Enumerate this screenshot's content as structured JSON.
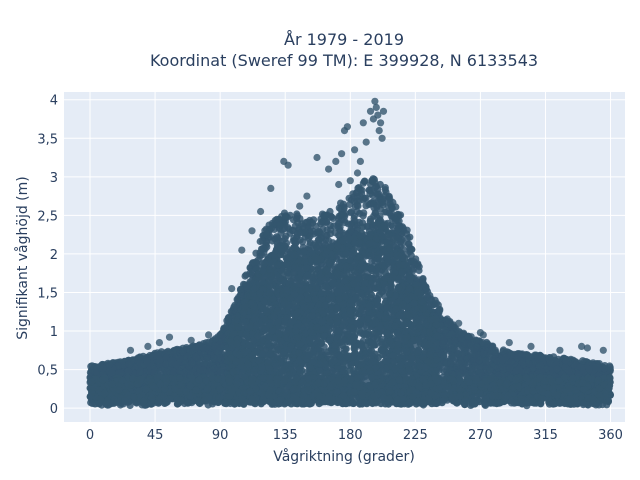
{
  "chart_data": {
    "type": "scatter",
    "title": "År 1979 - 2019",
    "subtitle": "Koordinat (Sweref 99 TM): E 399928, N 6133543",
    "xlabel": "Vågriktning (grader)",
    "ylabel": "Signifikant våghöjd (m)",
    "xlim": [
      -18,
      370
    ],
    "ylim": [
      -0.18,
      4.1
    ],
    "xticks": [
      0,
      45,
      90,
      135,
      180,
      225,
      270,
      315,
      360
    ],
    "xtick_labels": [
      "0",
      "45",
      "90",
      "135",
      "180",
      "225",
      "270",
      "315",
      "360"
    ],
    "yticks": [
      0,
      0.5,
      1,
      1.5,
      2,
      2.5,
      3,
      3.5,
      4
    ],
    "ytick_labels": [
      "0",
      "0,5",
      "1",
      "1,5",
      "2",
      "2,5",
      "3",
      "3,5",
      "4"
    ],
    "grid": true,
    "colors": {
      "marker": "#34566e",
      "plot_bg": "#e5ecf6",
      "grid": "#ffffff"
    },
    "envelope": {
      "x": [
        0,
        20,
        45,
        65,
        80,
        90,
        100,
        110,
        120,
        135,
        150,
        165,
        180,
        190,
        200,
        210,
        220,
        230,
        245,
        260,
        275,
        290,
        315,
        340,
        360
      ],
      "y": [
        0.55,
        0.6,
        0.72,
        0.78,
        0.85,
        0.95,
        1.35,
        1.85,
        2.3,
        2.6,
        2.45,
        2.55,
        2.75,
        2.95,
        3.0,
        2.7,
        2.3,
        1.7,
        1.2,
        0.95,
        0.85,
        0.72,
        0.68,
        0.62,
        0.55
      ]
    },
    "outliers": {
      "x": [
        134,
        137,
        157,
        165,
        170,
        174,
        176,
        178,
        183,
        187,
        189,
        191,
        194,
        196,
        197,
        198,
        199,
        200,
        201,
        202,
        203,
        185,
        180,
        172,
        150,
        145,
        125,
        118,
        112,
        105,
        98,
        82,
        70,
        55,
        48,
        28,
        40,
        255,
        270,
        272,
        290,
        305,
        325,
        340,
        344,
        355
      ],
      "y": [
        3.2,
        3.15,
        3.25,
        3.1,
        3.2,
        3.3,
        3.6,
        3.65,
        3.35,
        3.2,
        3.7,
        3.45,
        3.85,
        3.75,
        3.98,
        3.9,
        3.8,
        3.6,
        3.7,
        3.5,
        3.85,
        3.05,
        2.95,
        2.9,
        2.75,
        2.62,
        2.85,
        2.55,
        2.3,
        2.05,
        1.55,
        0.95,
        0.88,
        0.92,
        0.85,
        0.75,
        0.8,
        1.1,
        0.98,
        0.95,
        0.85,
        0.8,
        0.75,
        0.8,
        0.78,
        0.75
      ]
    }
  }
}
